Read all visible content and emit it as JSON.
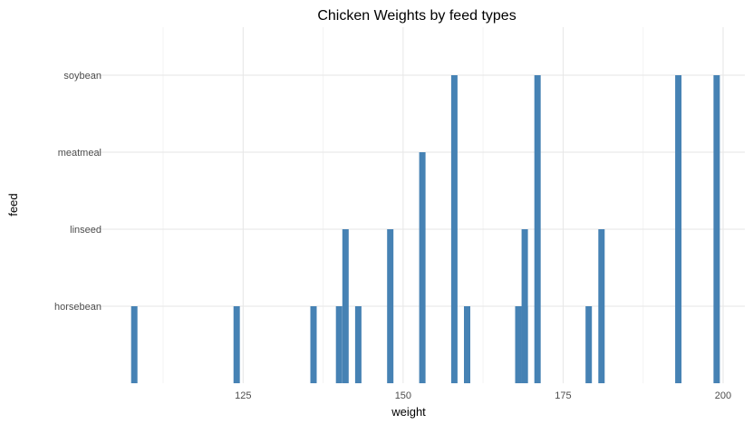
{
  "chart_data": {
    "type": "bar",
    "title": "Chicken Weights by feed types",
    "xlabel": "weight",
    "ylabel": "feed",
    "categories": [
      "horsebean",
      "linseed",
      "meatmeal",
      "soybean"
    ],
    "xlim": [
      104,
      203.4
    ],
    "x_ticks": [
      125,
      150,
      175,
      200
    ],
    "x_minor_ticks": [
      112.5,
      137.5,
      162.5,
      187.5
    ],
    "grid": true,
    "legend": "none",
    "bar_color": "#4682B4",
    "bars": [
      {
        "weight": 108,
        "feed": "horsebean"
      },
      {
        "weight": 124,
        "feed": "horsebean"
      },
      {
        "weight": 136,
        "feed": "horsebean"
      },
      {
        "weight": 140,
        "feed": "horsebean"
      },
      {
        "weight": 143,
        "feed": "horsebean"
      },
      {
        "weight": 160,
        "feed": "horsebean"
      },
      {
        "weight": 168,
        "feed": "horsebean"
      },
      {
        "weight": 169,
        "feed": "horsebean"
      },
      {
        "weight": 179,
        "feed": "horsebean"
      },
      {
        "weight": 141,
        "feed": "linseed"
      },
      {
        "weight": 148,
        "feed": "linseed"
      },
      {
        "weight": 169,
        "feed": "linseed"
      },
      {
        "weight": 181,
        "feed": "linseed"
      },
      {
        "weight": 153,
        "feed": "meatmeal"
      },
      {
        "weight": 158,
        "feed": "soybean"
      },
      {
        "weight": 171,
        "feed": "soybean"
      },
      {
        "weight": 193,
        "feed": "soybean"
      },
      {
        "weight": 199,
        "feed": "soybean"
      }
    ]
  }
}
